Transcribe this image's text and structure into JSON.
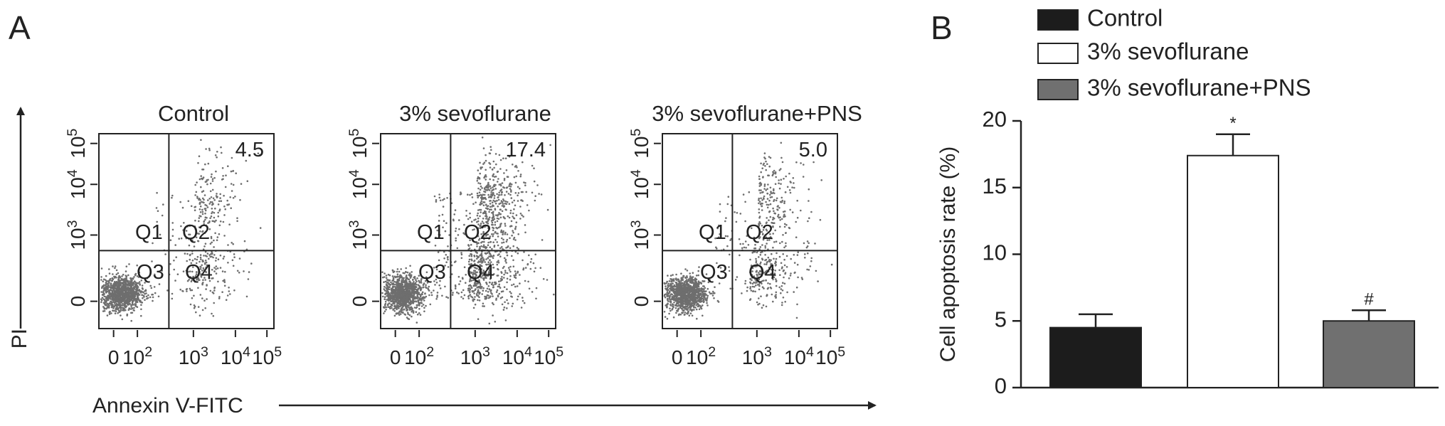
{
  "flow_panels": {
    "label": "A",
    "y_axis_label": "PI",
    "x_axis_label": "Annexin V-FITC",
    "quadrant_labels": [
      "Q1",
      "Q2",
      "Q3",
      "Q4"
    ],
    "x_tick_labels": [
      {
        "base": "0"
      },
      {
        "base": "10",
        "exponent": "2"
      },
      {
        "base": "10",
        "exponent": "3"
      },
      {
        "base": "10",
        "exponent": "4"
      },
      {
        "base": "10",
        "exponent": "5"
      }
    ],
    "y_tick_labels": [
      {
        "base": "0"
      },
      {
        "base": "10",
        "exponent": "3"
      },
      {
        "base": "10",
        "exponent": "4"
      },
      {
        "base": "10",
        "exponent": "5"
      }
    ],
    "plots": [
      {
        "title": "Control",
        "q2_percent": "4.5"
      },
      {
        "title": "3% sevoflurane",
        "q2_percent": "17.4"
      },
      {
        "title": "3% sevoflurane+PNS",
        "q2_percent": "5.0"
      }
    ]
  },
  "chart_data": {
    "type": "bar",
    "panel_label": "B",
    "y_label": "Cell apoptosis rate (%)",
    "categories": [
      "Control",
      "3% sevoflurane",
      "3% sevoflurane+PNS"
    ],
    "values": [
      4.5,
      17.4,
      5.0
    ],
    "errors": [
      1.0,
      1.6,
      0.8
    ],
    "colors": [
      "#1c1c1c",
      "#ffffff",
      "#707070"
    ],
    "annotations": [
      {
        "index": 1,
        "text": "*"
      },
      {
        "index": 2,
        "text": "#"
      }
    ],
    "ylim": [
      0,
      20
    ],
    "yticks": [
      0,
      5,
      10,
      15,
      20
    ]
  }
}
